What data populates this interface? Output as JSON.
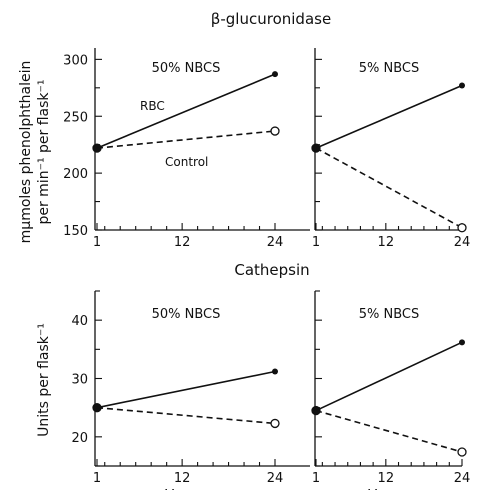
{
  "chart_data": [
    {
      "type": "line",
      "title": "β-glucuronidase",
      "panel_title": "50% NBCS",
      "x": [
        1,
        24
      ],
      "xticks": [
        1,
        12,
        24
      ],
      "ylim": [
        150,
        310
      ],
      "yticks": [
        150,
        200,
        250,
        300
      ],
      "ylabel_line1": "mμmoles phenolphthalein",
      "ylabel_line2": "per min⁻¹ per flask⁻¹",
      "series": [
        {
          "name": "RBC",
          "values": [
            222,
            287
          ],
          "style": "solid",
          "marker": "filled"
        },
        {
          "name": "Control",
          "values": [
            222,
            237
          ],
          "style": "dashed",
          "marker": "open"
        }
      ]
    },
    {
      "type": "line",
      "title": "β-glucuronidase",
      "panel_title": "5% NBCS",
      "x": [
        1,
        24
      ],
      "xticks": [
        1,
        12,
        24
      ],
      "ylim": [
        150,
        310
      ],
      "yticks": [
        150,
        200,
        250,
        300
      ],
      "series": [
        {
          "values": [
            222,
            277
          ],
          "style": "solid",
          "marker": "filled"
        },
        {
          "values": [
            222,
            152
          ],
          "style": "dashed",
          "marker": "open"
        }
      ]
    },
    {
      "type": "line",
      "title": "Cathepsin",
      "panel_title": "50% NBCS",
      "x": [
        1,
        24
      ],
      "xticks": [
        1,
        12,
        24
      ],
      "ylim": [
        15,
        45
      ],
      "yticks": [
        20,
        30,
        40
      ],
      "ylabel": "Units per flask⁻¹",
      "xlabel": "Hours",
      "series": [
        {
          "values": [
            25,
            31.2
          ],
          "style": "solid",
          "marker": "filled"
        },
        {
          "values": [
            25,
            22.3
          ],
          "style": "dashed",
          "marker": "open"
        }
      ]
    },
    {
      "type": "line",
      "title": "Cathepsin",
      "panel_title": "5% NBCS",
      "x": [
        1,
        24
      ],
      "xticks": [
        1,
        12,
        24
      ],
      "ylim": [
        15,
        45
      ],
      "yticks": [
        20,
        30,
        40
      ],
      "xlabel": "Hours",
      "series": [
        {
          "values": [
            24.5,
            36.2
          ],
          "style": "solid",
          "marker": "filled"
        },
        {
          "values": [
            24.5,
            17.4
          ],
          "style": "dashed",
          "marker": "open"
        }
      ]
    }
  ],
  "labels": {
    "top_title": "β-glucuronidase",
    "mid_title": "Cathepsin",
    "rbc": "RBC",
    "control": "Control"
  }
}
